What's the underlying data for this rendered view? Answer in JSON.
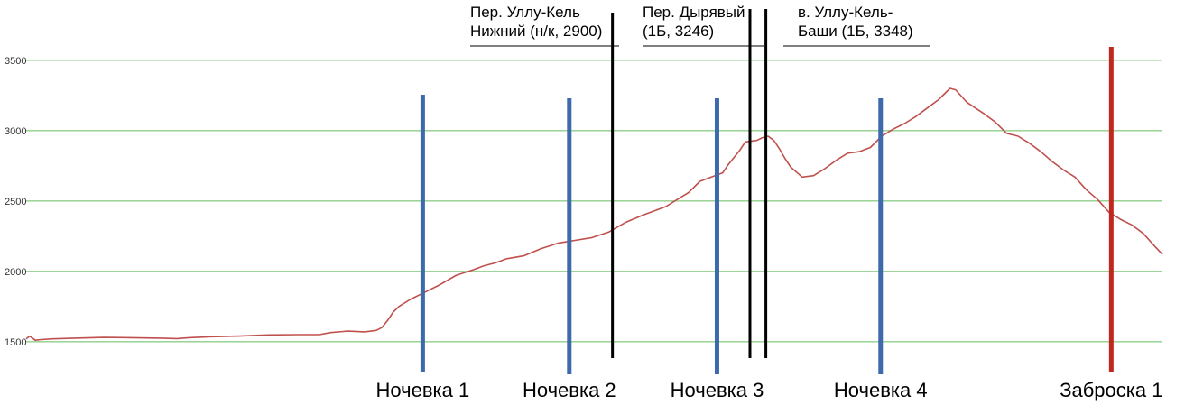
{
  "chart_data": {
    "type": "line",
    "title": "",
    "xlabel": "",
    "ylabel": "",
    "ylim": [
      1300,
      3800
    ],
    "xlim": [
      0,
      1000
    ],
    "y_ticks": [
      1500,
      2000,
      2500,
      3000,
      3500
    ],
    "grid": true,
    "series": [
      {
        "points": [
          [
            0,
            1520
          ],
          [
            3,
            1540
          ],
          [
            8,
            1510
          ],
          [
            13,
            1515
          ],
          [
            23,
            1520
          ],
          [
            43,
            1525
          ],
          [
            68,
            1530
          ],
          [
            93,
            1528
          ],
          [
            118,
            1525
          ],
          [
            133,
            1522
          ],
          [
            143,
            1528
          ],
          [
            163,
            1535
          ],
          [
            188,
            1540
          ],
          [
            213,
            1548
          ],
          [
            238,
            1550
          ],
          [
            258,
            1550
          ],
          [
            268,
            1565
          ],
          [
            283,
            1575
          ],
          [
            298,
            1570
          ],
          [
            308,
            1580
          ],
          [
            313,
            1600
          ],
          [
            318,
            1650
          ],
          [
            323,
            1710
          ],
          [
            328,
            1750
          ],
          [
            338,
            1800
          ],
          [
            348,
            1840
          ],
          [
            363,
            1900
          ],
          [
            378,
            1970
          ],
          [
            393,
            2010
          ],
          [
            403,
            2040
          ],
          [
            413,
            2060
          ],
          [
            423,
            2090
          ],
          [
            438,
            2110
          ],
          [
            453,
            2160
          ],
          [
            468,
            2200
          ],
          [
            483,
            2220
          ],
          [
            498,
            2240
          ],
          [
            513,
            2280
          ],
          [
            528,
            2350
          ],
          [
            543,
            2400
          ],
          [
            563,
            2460
          ],
          [
            573,
            2510
          ],
          [
            583,
            2560
          ],
          [
            593,
            2640
          ],
          [
            603,
            2670
          ],
          [
            613,
            2700
          ],
          [
            618,
            2760
          ],
          [
            628,
            2860
          ],
          [
            633,
            2920
          ],
          [
            643,
            2930
          ],
          [
            648,
            2950
          ],
          [
            653,
            2960
          ],
          [
            658,
            2930
          ],
          [
            663,
            2870
          ],
          [
            668,
            2800
          ],
          [
            673,
            2740
          ],
          [
            683,
            2670
          ],
          [
            693,
            2680
          ],
          [
            703,
            2730
          ],
          [
            713,
            2790
          ],
          [
            723,
            2840
          ],
          [
            733,
            2850
          ],
          [
            743,
            2880
          ],
          [
            753,
            2960
          ],
          [
            763,
            3010
          ],
          [
            773,
            3050
          ],
          [
            783,
            3100
          ],
          [
            793,
            3160
          ],
          [
            803,
            3220
          ],
          [
            813,
            3300
          ],
          [
            818,
            3290
          ],
          [
            828,
            3200
          ],
          [
            843,
            3120
          ],
          [
            853,
            3060
          ],
          [
            863,
            2980
          ],
          [
            873,
            2960
          ],
          [
            883,
            2910
          ],
          [
            893,
            2850
          ],
          [
            903,
            2780
          ],
          [
            913,
            2720
          ],
          [
            923,
            2670
          ],
          [
            933,
            2580
          ],
          [
            943,
            2510
          ],
          [
            953,
            2420
          ],
          [
            963,
            2370
          ],
          [
            973,
            2330
          ],
          [
            983,
            2270
          ],
          [
            993,
            2180
          ],
          [
            1000,
            2120
          ]
        ]
      }
    ],
    "camps": [
      {
        "x": 349,
        "label": "Ночевка 1"
      },
      {
        "x": 478,
        "label": "Ночевка 2"
      },
      {
        "x": 608,
        "label": "Ночевка 3"
      },
      {
        "x": 752,
        "label": "Ночевка 4"
      },
      {
        "x": 955,
        "label": "Заброска 1"
      }
    ],
    "passes": [
      {
        "x": 516,
        "lines": [
          "Пер. Уллу-Кель",
          "Нижний (н/к, 2900)"
        ]
      },
      {
        "x": 637,
        "lines": [
          "Пер. Дырявый",
          "(1Б, 3246)"
        ]
      },
      {
        "x": 651,
        "lines": [
          "в. Уллу-Кель-",
          "Баши (1Б, 3348)"
        ]
      }
    ],
    "colors": {
      "line": "#c0504d",
      "grid": "#8fce8a",
      "camp": "#3d6aab",
      "cache": "#c0281f",
      "pass": "#000000"
    }
  }
}
